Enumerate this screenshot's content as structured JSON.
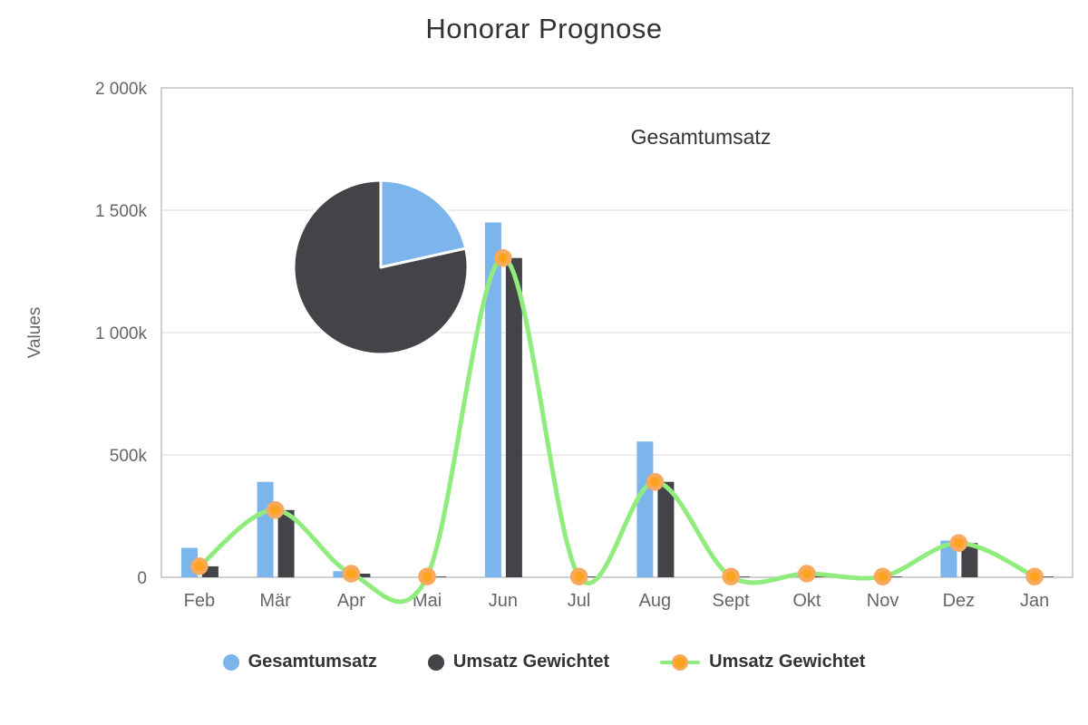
{
  "title": "Honorar Prognose",
  "colors": {
    "blue": "#7cb5ec",
    "dark": "#434348",
    "green": "#90ed7d",
    "orange_fill": "#ffa21c",
    "orange_ring": "#f7a95e",
    "grid": "#e6e6e6",
    "plot_border": "#d0d0d0",
    "x_axis_line": "#ccd6eb",
    "text_gray": "#666666",
    "text_dark": "#333333"
  },
  "legend": {
    "items": [
      {
        "label": "Gesamtumsatz",
        "color": "#7cb5ec",
        "type": "circle"
      },
      {
        "label": "Umsatz Gewichtet",
        "color": "#434348",
        "type": "circle"
      },
      {
        "label": "Umsatz Gewichtet",
        "color": "#ffa21c",
        "ring_color": "#f7a95e",
        "line_color": "#90ed7d",
        "type": "line-marker"
      }
    ]
  },
  "chart_data": [
    {
      "type": "bar",
      "title": "Honorar Prognose",
      "categories": [
        "Feb",
        "Mär",
        "Apr",
        "Mai",
        "Jun",
        "Jul",
        "Aug",
        "Sept",
        "Okt",
        "Nov",
        "Dez",
        "Jan"
      ],
      "unit": "k",
      "ylabel": "Values",
      "xlabel": "",
      "ylim": [
        0,
        2000
      ],
      "grid": true,
      "legend_position": "bottom",
      "yticks": [
        {
          "v": 2000,
          "label": "2 000k"
        },
        {
          "v": 1500,
          "label": "1 500k"
        },
        {
          "v": 1000,
          "label": "1 000k"
        },
        {
          "v": 500,
          "label": "500k"
        },
        {
          "v": 0,
          "label": "0"
        }
      ],
      "series": [
        {
          "name": "Gesamtumsatz",
          "render": "bar",
          "color": "#7cb5ec",
          "values": [
            120,
            390,
            25,
            0,
            1450,
            0,
            555,
            0,
            5,
            0,
            150,
            0
          ]
        },
        {
          "name": "Umsatz Gewichtet",
          "render": "bar",
          "color": "#434348",
          "values": [
            45,
            275,
            15,
            3,
            1305,
            3,
            390,
            3,
            15,
            3,
            140,
            3
          ]
        },
        {
          "name": "Umsatz Gewichtet",
          "render": "spline",
          "color": "#90ed7d",
          "marker_fill": "#ffa21c",
          "marker_ring": "#f7a95e",
          "values": [
            45,
            275,
            15,
            3,
            1305,
            3,
            390,
            3,
            15,
            3,
            140,
            3
          ]
        }
      ]
    },
    {
      "type": "pie",
      "title": "Gesamtumsatz",
      "slices": [
        {
          "label": "Gesamtumsatz",
          "percent": 21.5,
          "color": "#7cb5ec"
        },
        {
          "label": "Umsatz Gewichtet",
          "percent": 78.5,
          "color": "#434348"
        }
      ]
    }
  ]
}
